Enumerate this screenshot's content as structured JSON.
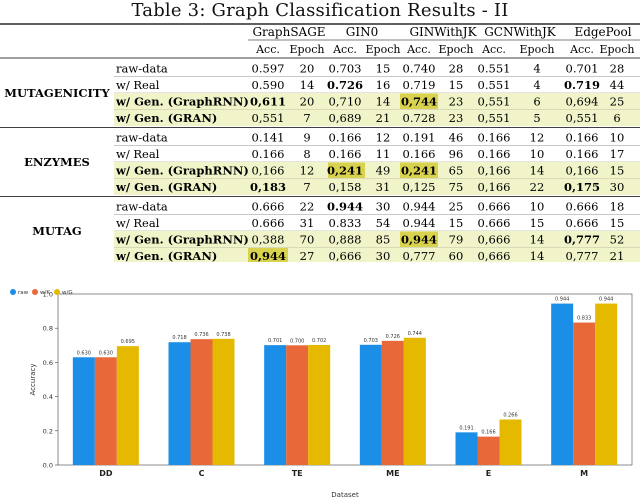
{
  "table": {
    "caption": "Table 3: Graph Classification Results - II",
    "models": [
      "GraphSAGE",
      "GIN0",
      "GINWithJK",
      "GCNWithJK",
      "EdgePool"
    ],
    "sub_headers": [
      "Acc.",
      "Epoch"
    ],
    "groups": [
      {
        "dataset": "MUTAGENICITY",
        "rows": [
          {
            "label": "raw-data",
            "bold_label": false,
            "hl": false,
            "cells": [
              [
                "0.597",
                "20"
              ],
              [
                "0.703",
                "15"
              ],
              [
                "0.740",
                "28"
              ],
              [
                "0.551",
                "4"
              ],
              [
                "0.701",
                "28"
              ]
            ]
          },
          {
            "label": "w/ Real",
            "bold_label": false,
            "hl": false,
            "cells": [
              [
                "0.590",
                "14"
              ],
              [
                "0.726",
                "16"
              ],
              [
                "0.719",
                "15"
              ],
              [
                "0.551",
                "4"
              ],
              [
                "0.719",
                "44"
              ]
            ]
          },
          {
            "label": "w/ Gen. (GraphRNN)",
            "bold_label": true,
            "hl": true,
            "cells": [
              [
                "0,611",
                "20"
              ],
              [
                "0,710",
                "14"
              ],
              [
                "0,744",
                "23"
              ],
              [
                "0,551",
                "6"
              ],
              [
                "0,694",
                "25"
              ]
            ]
          },
          {
            "label": "w/ Gen. (GRAN)",
            "bold_label": true,
            "hl": true,
            "cells": [
              [
                "0,551",
                "7"
              ],
              [
                "0,689",
                "21"
              ],
              [
                "0.728",
                "23"
              ],
              [
                "0,551",
                "5"
              ],
              [
                "0,551",
                "6"
              ]
            ]
          }
        ]
      },
      {
        "dataset": "ENZYMES",
        "rows": [
          {
            "label": "raw-data",
            "bold_label": false,
            "hl": false,
            "cells": [
              [
                "0.141",
                "9"
              ],
              [
                "0.166",
                "12"
              ],
              [
                "0.191",
                "46"
              ],
              [
                "0.166",
                "12"
              ],
              [
                "0.166",
                "10"
              ]
            ]
          },
          {
            "label": "w/ Real",
            "bold_label": false,
            "hl": false,
            "cells": [
              [
                "0.166",
                "8"
              ],
              [
                "0.166",
                "11"
              ],
              [
                "0.166",
                "96"
              ],
              [
                "0.166",
                "10"
              ],
              [
                "0.166",
                "17"
              ]
            ]
          },
          {
            "label": "w/ Gen. (GraphRNN)",
            "bold_label": true,
            "hl": true,
            "cells": [
              [
                "0,166",
                "12"
              ],
              [
                "0,241",
                "49"
              ],
              [
                "0,241",
                "65"
              ],
              [
                "0,166",
                "14"
              ],
              [
                "0,166",
                "15"
              ]
            ]
          },
          {
            "label": "w/ Gen. (GRAN)",
            "bold_label": true,
            "hl": true,
            "cells": [
              [
                "0,183",
                "7"
              ],
              [
                "0,158",
                "31"
              ],
              [
                "0,125",
                "75"
              ],
              [
                "0,166",
                "22"
              ],
              [
                "0,175",
                "30"
              ]
            ]
          }
        ]
      },
      {
        "dataset": "MUTAG",
        "rows": [
          {
            "label": "raw-data",
            "bold_label": false,
            "hl": false,
            "cells": [
              [
                "0.666",
                "22"
              ],
              [
                "0.944",
                "30"
              ],
              [
                "0.944",
                "25"
              ],
              [
                "0.666",
                "10"
              ],
              [
                "0.666",
                "18"
              ]
            ]
          },
          {
            "label": "w/ Real",
            "bold_label": false,
            "hl": false,
            "cells": [
              [
                "0.666",
                "31"
              ],
              [
                "0.833",
                "54"
              ],
              [
                "0.944",
                "15"
              ],
              [
                "0.666",
                "15"
              ],
              [
                "0.666",
                "15"
              ]
            ]
          },
          {
            "label": "w/ Gen. (GraphRNN)",
            "bold_label": true,
            "hl": true,
            "cells": [
              [
                "0,388",
                "70"
              ],
              [
                "0,888",
                "85"
              ],
              [
                "0,944",
                "79"
              ],
              [
                "0,666",
                "14"
              ],
              [
                "0,777",
                "52"
              ]
            ]
          },
          {
            "label": "w/ Gen. (GRAN)",
            "bold_label": true,
            "hl": true,
            "cells": [
              [
                "0,944",
                "27"
              ],
              [
                "0,666",
                "30"
              ],
              [
                "0,777",
                "60"
              ],
              [
                "0,666",
                "14"
              ],
              [
                "0,777",
                "21"
              ]
            ]
          }
        ]
      }
    ],
    "bold_cells": [
      [
        0,
        1,
        1
      ],
      [
        0,
        1,
        4
      ],
      [
        0,
        2,
        0
      ],
      [
        0,
        2,
        2
      ],
      [
        1,
        2,
        1
      ],
      [
        1,
        2,
        2
      ],
      [
        1,
        3,
        0
      ],
      [
        1,
        3,
        4
      ],
      [
        2,
        0,
        1
      ],
      [
        2,
        2,
        2
      ],
      [
        2,
        2,
        4
      ],
      [
        2,
        3,
        0
      ]
    ],
    "gold_cells": [
      [
        0,
        2,
        2
      ],
      [
        1,
        2,
        1
      ],
      [
        1,
        2,
        2
      ],
      [
        2,
        2,
        2
      ],
      [
        2,
        3,
        0
      ]
    ],
    "colors": {
      "row_highlight": "#f1f3c9",
      "cell_highlight": "#d9d24f",
      "rule": "#000000"
    }
  },
  "chart_data": {
    "type": "bar",
    "categories": [
      "DD",
      "C",
      "TE",
      "ME",
      "E",
      "M"
    ],
    "series": [
      {
        "name": "raw",
        "color": "#1b8fe8",
        "values": [
          0.63,
          0.718,
          0.701,
          0.703,
          0.191,
          0.944
        ],
        "labels": [
          "0.630",
          "0.718",
          "0.701",
          "0.703",
          "0.191",
          "0.944"
        ]
      },
      {
        "name": "w/K",
        "color": "#e8683a",
        "values": [
          0.63,
          0.736,
          0.7,
          0.726,
          0.166,
          0.833
        ],
        "labels": [
          "0.630",
          "0.736",
          "0.700",
          "0.726",
          "0.166",
          "0.833"
        ]
      },
      {
        "name": "w/G",
        "color": "#e4b900",
        "values": [
          0.695,
          0.738,
          0.702,
          0.744,
          0.266,
          0.944
        ],
        "labels": [
          "0.695",
          "0.738",
          "0.702",
          "0.744",
          "0.266",
          "0.944"
        ]
      }
    ],
    "xlabel": "Dataset",
    "ylabel": "Accuracy",
    "ylim": [
      0,
      1.0
    ],
    "yticks": [
      0.0,
      0.2,
      0.4,
      0.6,
      0.8,
      1.0
    ],
    "ytick_labels": [
      "0.0",
      "0.2",
      "0.4",
      "0.6",
      "0.8",
      "1.0"
    ],
    "legend_position": "top-left",
    "grid": false
  }
}
